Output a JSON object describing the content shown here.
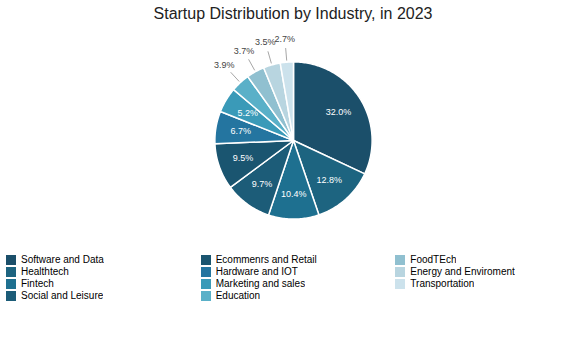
{
  "chart_data": {
    "type": "pie",
    "title": "Startup Distribution by Industry, in 2023",
    "categories": [
      "Software and Data",
      "Healthtech",
      "Fintech",
      "Social and Leisure",
      "Ecommenrs and Retail",
      "Hardware and IOT",
      "Marketing and sales",
      "Education",
      "FoodTEch",
      "Energy and Enviroment",
      "Transportation"
    ],
    "values": [
      32.0,
      12.8,
      10.4,
      9.7,
      9.5,
      6.7,
      5.2,
      3.9,
      3.7,
      3.5,
      2.7
    ],
    "value_labels": [
      "32.0%",
      "12.8%",
      "10.4%",
      "9.7%",
      "9.5%",
      "6.7%",
      "5.2%",
      "3.9%",
      "3.7%",
      "3.5%",
      "2.7%"
    ],
    "colors": [
      "#1b4f6a",
      "#1d6480",
      "#1e7090",
      "#1c5c78",
      "#1a5570",
      "#2475a0",
      "#3a9ab8",
      "#5ab0c8",
      "#90c0d0",
      "#b8d5e0",
      "#cce2ec"
    ],
    "data_labels": true,
    "legend": "bottom"
  }
}
